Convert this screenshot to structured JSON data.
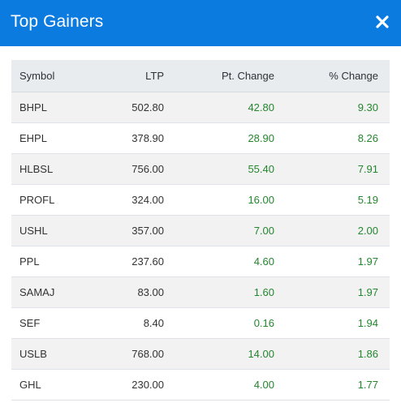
{
  "modal": {
    "title": "Top Gainers",
    "close_icon": "close-icon",
    "header_color": "#0b7be0",
    "gain_color": "#24862e"
  },
  "table": {
    "headers": {
      "symbol": "Symbol",
      "ltp": "LTP",
      "pt_change": "Pt. Change",
      "pct_change": "% Change"
    },
    "rows": [
      {
        "symbol": "BHPL",
        "ltp": "502.80",
        "pt_change": "42.80",
        "pct_change": "9.30"
      },
      {
        "symbol": "EHPL",
        "ltp": "378.90",
        "pt_change": "28.90",
        "pct_change": "8.26"
      },
      {
        "symbol": "HLBSL",
        "ltp": "756.00",
        "pt_change": "55.40",
        "pct_change": "7.91"
      },
      {
        "symbol": "PROFL",
        "ltp": "324.00",
        "pt_change": "16.00",
        "pct_change": "5.19"
      },
      {
        "symbol": "USHL",
        "ltp": "357.00",
        "pt_change": "7.00",
        "pct_change": "2.00"
      },
      {
        "symbol": "PPL",
        "ltp": "237.60",
        "pt_change": "4.60",
        "pct_change": "1.97"
      },
      {
        "symbol": "SAMAJ",
        "ltp": "83.00",
        "pt_change": "1.60",
        "pct_change": "1.97"
      },
      {
        "symbol": "SEF",
        "ltp": "8.40",
        "pt_change": "0.16",
        "pct_change": "1.94"
      },
      {
        "symbol": "USLB",
        "ltp": "768.00",
        "pt_change": "14.00",
        "pct_change": "1.86"
      },
      {
        "symbol": "GHL",
        "ltp": "230.00",
        "pt_change": "4.00",
        "pct_change": "1.77"
      }
    ]
  }
}
